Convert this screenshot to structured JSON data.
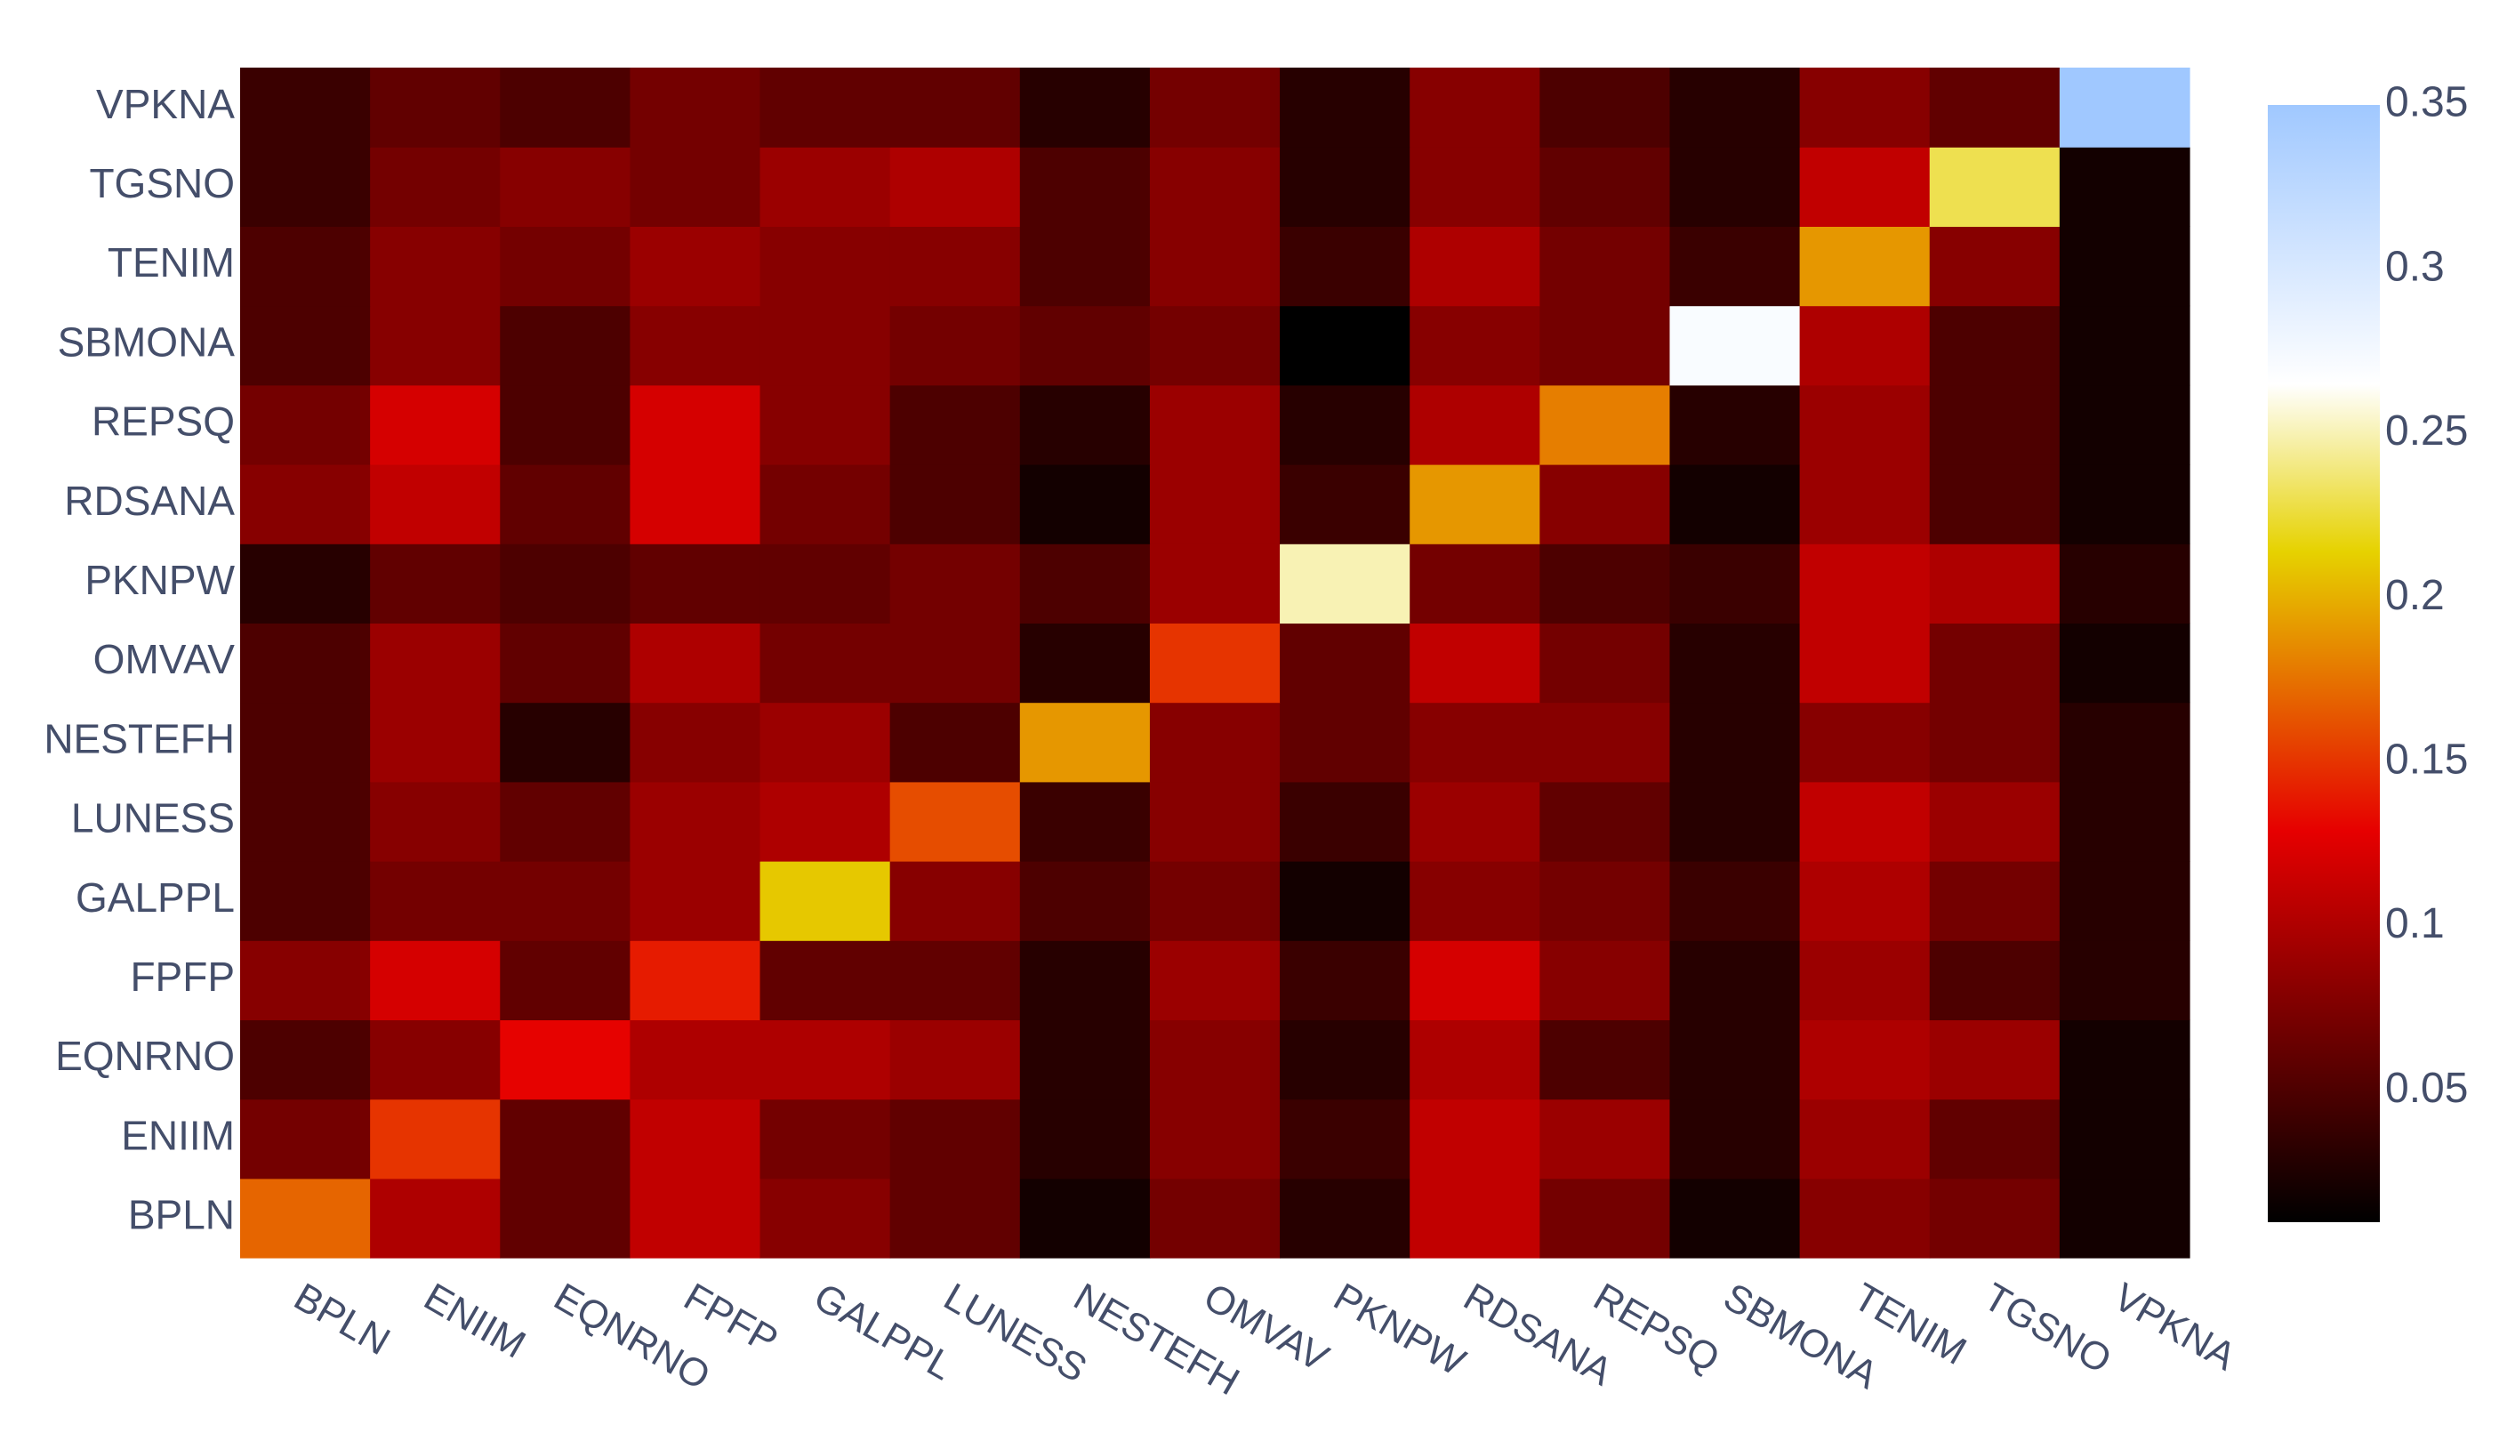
{
  "chart_data": {
    "type": "heatmap",
    "x_categories": [
      "BPLN",
      "ENIIM",
      "EQNRNO",
      "FPFP",
      "GALPPL",
      "LUNESS",
      "NESTEFH",
      "OMVAV",
      "PKNPW",
      "RDSANA",
      "REPSQ",
      "SBMONA",
      "TENIM",
      "TGSNO",
      "VPKNA"
    ],
    "y_categories": [
      "BPLN",
      "ENIIM",
      "EQNRNO",
      "FPFP",
      "GALPPL",
      "LUNESS",
      "NESTEFH",
      "OMVAV",
      "PKNPW",
      "RDSANA",
      "REPSQ",
      "SBMONA",
      "TENIM",
      "TGSNO",
      "VPKNA"
    ],
    "z": [
      [
        0.17,
        0.1,
        0.06,
        0.11,
        0.08,
        0.06,
        0.02,
        0.07,
        0.03,
        0.11,
        0.07,
        0.02,
        0.08,
        0.07,
        0.02
      ],
      [
        0.07,
        0.15,
        0.06,
        0.11,
        0.07,
        0.06,
        0.03,
        0.08,
        0.04,
        0.11,
        0.09,
        0.03,
        0.09,
        0.06,
        0.02
      ],
      [
        0.05,
        0.08,
        0.13,
        0.1,
        0.1,
        0.09,
        0.03,
        0.08,
        0.03,
        0.1,
        0.05,
        0.03,
        0.1,
        0.09,
        0.02
      ],
      [
        0.08,
        0.12,
        0.06,
        0.14,
        0.06,
        0.06,
        0.03,
        0.09,
        0.04,
        0.12,
        0.08,
        0.03,
        0.09,
        0.05,
        0.03
      ],
      [
        0.05,
        0.07,
        0.07,
        0.09,
        0.21,
        0.08,
        0.05,
        0.07,
        0.02,
        0.08,
        0.07,
        0.04,
        0.1,
        0.07,
        0.03
      ],
      [
        0.05,
        0.08,
        0.06,
        0.09,
        0.1,
        0.16,
        0.04,
        0.08,
        0.04,
        0.09,
        0.06,
        0.03,
        0.11,
        0.09,
        0.03
      ],
      [
        0.05,
        0.09,
        0.03,
        0.08,
        0.09,
        0.05,
        0.19,
        0.08,
        0.06,
        0.08,
        0.08,
        0.03,
        0.08,
        0.07,
        0.03
      ],
      [
        0.05,
        0.09,
        0.06,
        0.1,
        0.07,
        0.07,
        0.03,
        0.15,
        0.06,
        0.11,
        0.07,
        0.03,
        0.11,
        0.07,
        0.02
      ],
      [
        0.03,
        0.06,
        0.05,
        0.06,
        0.06,
        0.07,
        0.05,
        0.09,
        0.25,
        0.07,
        0.05,
        0.04,
        0.11,
        0.1,
        0.03
      ],
      [
        0.08,
        0.11,
        0.06,
        0.12,
        0.07,
        0.05,
        0.02,
        0.09,
        0.04,
        0.19,
        0.08,
        0.02,
        0.09,
        0.05,
        0.02
      ],
      [
        0.07,
        0.12,
        0.05,
        0.12,
        0.08,
        0.05,
        0.03,
        0.09,
        0.03,
        0.1,
        0.18,
        0.03,
        0.09,
        0.05,
        0.02
      ],
      [
        0.05,
        0.08,
        0.05,
        0.08,
        0.08,
        0.07,
        0.06,
        0.07,
        0.01,
        0.08,
        0.07,
        0.27,
        0.1,
        0.05,
        0.02
      ],
      [
        0.05,
        0.08,
        0.07,
        0.09,
        0.08,
        0.08,
        0.05,
        0.08,
        0.04,
        0.1,
        0.07,
        0.04,
        0.19,
        0.08,
        0.02
      ],
      [
        0.04,
        0.07,
        0.08,
        0.07,
        0.09,
        0.1,
        0.05,
        0.08,
        0.03,
        0.08,
        0.06,
        0.03,
        0.11,
        0.23,
        0.02
      ],
      [
        0.04,
        0.06,
        0.05,
        0.07,
        0.06,
        0.06,
        0.03,
        0.07,
        0.03,
        0.08,
        0.05,
        0.03,
        0.08,
        0.06,
        0.35
      ]
    ],
    "zmin": 0.01,
    "zmax": 0.35,
    "colorscale": [
      [
        0.0,
        "#000000"
      ],
      [
        0.35,
        "#e60000"
      ],
      [
        0.6,
        "#e6d200"
      ],
      [
        0.75,
        "#ffffff"
      ],
      [
        1.0,
        "#a0c8ff"
      ]
    ],
    "colorbar_ticks": [
      0.05,
      0.1,
      0.15,
      0.2,
      0.25,
      0.3,
      0.35
    ],
    "colorbar_ticklabels": [
      "0.05",
      "0.1",
      "0.15",
      "0.2",
      "0.25",
      "0.3",
      "0.35"
    ]
  }
}
